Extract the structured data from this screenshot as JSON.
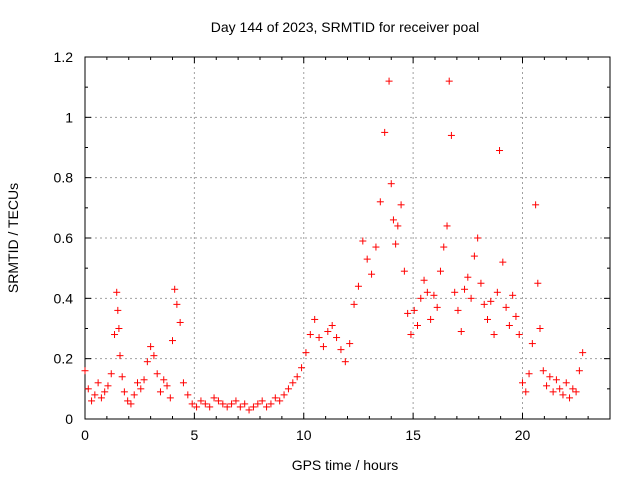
{
  "chart_data": {
    "type": "scatter",
    "title": "Day 144 of 2023, SRMTID for receiver poal",
    "xlabel": "GPS time / hours",
    "ylabel": "SRMTID / TECUs",
    "xlim": [
      0,
      24
    ],
    "ylim": [
      0,
      1.2
    ],
    "x_ticks": [
      0,
      5,
      10,
      15,
      20
    ],
    "x_tick_labels": [
      "0",
      "5",
      "10",
      "15",
      "20"
    ],
    "y_ticks": [
      0,
      0.2,
      0.4,
      0.6,
      0.8,
      1.0,
      1.2
    ],
    "y_tick_labels": [
      "0",
      "0.2",
      "0.4",
      "0.6",
      "0.8",
      "1",
      "1.2"
    ],
    "grid": true,
    "marker": "+",
    "colors": {
      "marker": "#ff0000",
      "grid": "#a0a0a0",
      "axis": "#000000",
      "text": "#000000"
    },
    "series": [
      {
        "name": "SRMTID",
        "x": [
          0.0,
          0.15,
          0.3,
          0.45,
          0.6,
          0.75,
          0.9,
          1.05,
          1.2,
          1.35,
          1.45,
          1.5,
          1.55,
          1.6,
          1.7,
          1.8,
          1.95,
          2.1,
          2.25,
          2.4,
          2.55,
          2.7,
          2.85,
          3.0,
          3.15,
          3.3,
          3.45,
          3.6,
          3.75,
          3.9,
          4.0,
          4.1,
          4.2,
          4.35,
          4.5,
          4.7,
          4.9,
          5.1,
          5.3,
          5.5,
          5.7,
          5.9,
          6.1,
          6.3,
          6.5,
          6.7,
          6.9,
          7.1,
          7.3,
          7.5,
          7.7,
          7.9,
          8.1,
          8.3,
          8.5,
          8.7,
          8.9,
          9.1,
          9.3,
          9.5,
          9.7,
          9.9,
          10.1,
          10.3,
          10.5,
          10.7,
          10.9,
          11.1,
          11.3,
          11.5,
          11.7,
          11.9,
          12.1,
          12.3,
          12.5,
          12.7,
          12.9,
          13.1,
          13.3,
          13.5,
          13.7,
          13.9,
          14.0,
          14.1,
          14.2,
          14.3,
          14.45,
          14.6,
          14.75,
          14.9,
          15.05,
          15.2,
          15.35,
          15.5,
          15.65,
          15.8,
          15.95,
          16.1,
          16.25,
          16.4,
          16.55,
          16.65,
          16.75,
          16.9,
          17.05,
          17.2,
          17.35,
          17.5,
          17.65,
          17.8,
          17.95,
          18.1,
          18.25,
          18.4,
          18.55,
          18.7,
          18.85,
          18.95,
          19.1,
          19.25,
          19.4,
          19.55,
          19.7,
          19.85,
          20.0,
          20.15,
          20.3,
          20.45,
          20.6,
          20.7,
          20.8,
          20.95,
          21.1,
          21.25,
          21.4,
          21.55,
          21.7,
          21.85,
          22.0,
          22.15,
          22.3,
          22.45,
          22.6,
          22.75
        ],
        "values": [
          0.16,
          0.1,
          0.06,
          0.08,
          0.12,
          0.07,
          0.09,
          0.11,
          0.15,
          0.28,
          0.42,
          0.36,
          0.3,
          0.21,
          0.14,
          0.09,
          0.06,
          0.05,
          0.08,
          0.12,
          0.1,
          0.13,
          0.19,
          0.24,
          0.21,
          0.15,
          0.09,
          0.13,
          0.11,
          0.07,
          0.26,
          0.43,
          0.38,
          0.32,
          0.12,
          0.08,
          0.05,
          0.04,
          0.06,
          0.05,
          0.04,
          0.07,
          0.06,
          0.05,
          0.04,
          0.05,
          0.06,
          0.04,
          0.05,
          0.03,
          0.04,
          0.05,
          0.06,
          0.04,
          0.05,
          0.07,
          0.06,
          0.08,
          0.1,
          0.12,
          0.14,
          0.17,
          0.22,
          0.28,
          0.33,
          0.27,
          0.24,
          0.29,
          0.31,
          0.27,
          0.23,
          0.19,
          0.25,
          0.38,
          0.44,
          0.59,
          0.53,
          0.48,
          0.57,
          0.72,
          0.95,
          1.12,
          0.78,
          0.66,
          0.58,
          0.64,
          0.71,
          0.49,
          0.35,
          0.28,
          0.36,
          0.31,
          0.4,
          0.46,
          0.42,
          0.33,
          0.41,
          0.37,
          0.49,
          0.57,
          0.64,
          1.12,
          0.94,
          0.42,
          0.36,
          0.29,
          0.43,
          0.47,
          0.4,
          0.54,
          0.6,
          0.45,
          0.38,
          0.33,
          0.39,
          0.28,
          0.42,
          0.89,
          0.52,
          0.37,
          0.31,
          0.41,
          0.34,
          0.28,
          0.12,
          0.09,
          0.15,
          0.25,
          0.71,
          0.45,
          0.3,
          0.16,
          0.11,
          0.14,
          0.09,
          0.13,
          0.1,
          0.08,
          0.12,
          0.07,
          0.1,
          0.09,
          0.16,
          0.22
        ]
      }
    ]
  }
}
